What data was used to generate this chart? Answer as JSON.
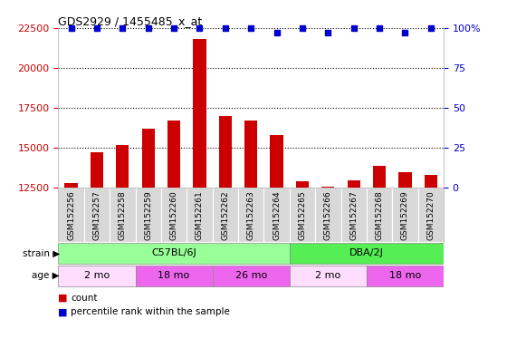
{
  "title": "GDS2929 / 1455485_x_at",
  "samples": [
    "GSM152256",
    "GSM152257",
    "GSM152258",
    "GSM152259",
    "GSM152260",
    "GSM152261",
    "GSM152262",
    "GSM152263",
    "GSM152264",
    "GSM152265",
    "GSM152266",
    "GSM152267",
    "GSM152268",
    "GSM152269",
    "GSM152270"
  ],
  "counts": [
    12800,
    14700,
    15200,
    16200,
    16700,
    21800,
    17000,
    16700,
    15800,
    12900,
    12600,
    13000,
    13900,
    13500,
    13300
  ],
  "percentile": [
    100,
    100,
    100,
    100,
    100,
    100,
    100,
    100,
    97,
    100,
    97,
    100,
    100,
    97,
    100
  ],
  "ylim_left": [
    12500,
    22500
  ],
  "ylim_right": [
    0,
    100
  ],
  "yticks_left": [
    12500,
    15000,
    17500,
    20000,
    22500
  ],
  "yticks_right": [
    0,
    25,
    50,
    75,
    100
  ],
  "bar_color": "#cc0000",
  "dot_color": "#0000cc",
  "strain_groups": [
    {
      "label": "C57BL/6J",
      "start": 0,
      "end": 8,
      "color": "#99ff99"
    },
    {
      "label": "DBA/2J",
      "start": 9,
      "end": 14,
      "color": "#55ee55"
    }
  ],
  "age_groups": [
    {
      "label": "2 mo",
      "start": 0,
      "end": 2,
      "color": "#ffddff"
    },
    {
      "label": "18 mo",
      "start": 3,
      "end": 5,
      "color": "#ee66ee"
    },
    {
      "label": "26 mo",
      "start": 6,
      "end": 8,
      "color": "#ee66ee"
    },
    {
      "label": "2 mo",
      "start": 9,
      "end": 11,
      "color": "#ffddff"
    },
    {
      "label": "18 mo",
      "start": 12,
      "end": 14,
      "color": "#ee66ee"
    }
  ],
  "strain_label": "strain",
  "age_label": "age",
  "legend_count": "count",
  "legend_pct": "percentile rank within the sample",
  "bg_color": "#ffffff",
  "xticklabel_bg": "#d8d8d8",
  "left_axis_color": "#cc0000",
  "right_axis_color": "#0000cc",
  "bar_width": 0.5
}
